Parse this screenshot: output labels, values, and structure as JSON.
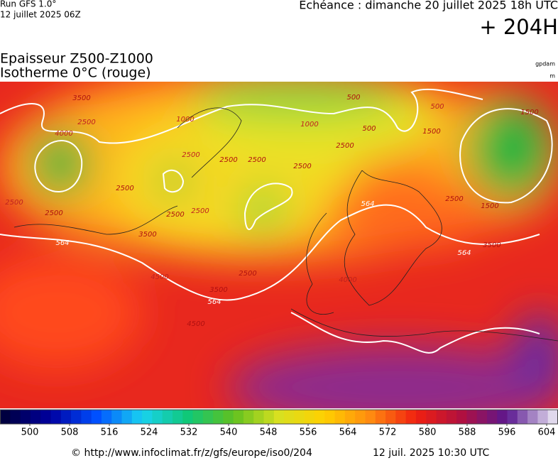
{
  "header": {
    "run": "Run GFS 1.0°",
    "run_date": "12 juillet 2025 06Z",
    "valid": "Echéance : dimanche 20 juillet 2025 18h UTC",
    "lead": "+ 204H"
  },
  "title": {
    "line1": "Epaisseur Z500-Z1000",
    "line2": "Isotherme 0°C (rouge)"
  },
  "units": {
    "thickness": "gpdam",
    "isotherm": "m"
  },
  "contour_labels": [
    "3500",
    "2500",
    "4000",
    "2500",
    "2500",
    "2500",
    "564",
    "3500",
    "4500",
    "4500",
    "3500",
    "564",
    "2500",
    "2500",
    "2500",
    "2500",
    "2500",
    "2500",
    "2500",
    "2500",
    "1000",
    "1000",
    "500",
    "500",
    "500",
    "1500",
    "1500",
    "1500",
    "2500",
    "3500",
    "564",
    "564",
    "4000"
  ],
  "colorbar": {
    "ticks": [
      500,
      508,
      516,
      524,
      532,
      540,
      548,
      556,
      564,
      572,
      580,
      588,
      596,
      604
    ]
  },
  "footer": {
    "url": "© http://www.infoclimat.fr/z/gfs/europe/iso0/204",
    "generated": "12 juil. 2025 10:30 UTC"
  }
}
